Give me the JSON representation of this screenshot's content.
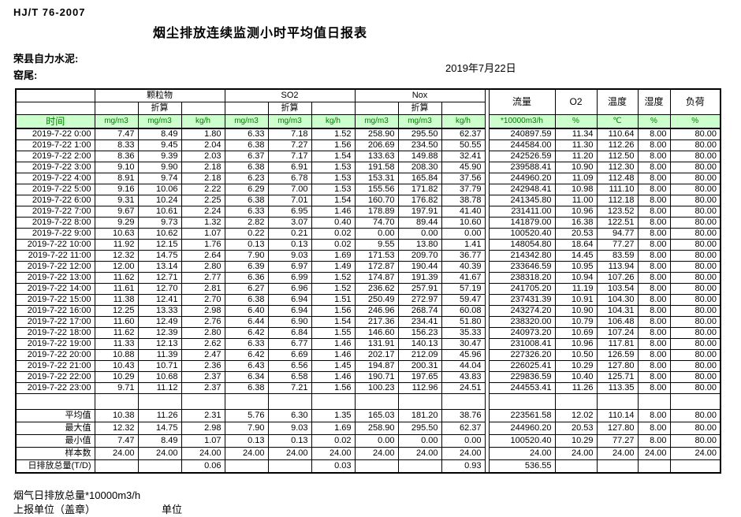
{
  "meta": {
    "standard": "HJ/T  76-2007",
    "title": "烟尘排放连续监测小时平均值日报表",
    "company": "荣县自力水泥:",
    "location": "窑尾:",
    "date": "2019年7月22日"
  },
  "table": {
    "groups": {
      "pm": "颗粒物",
      "so2": "SO2",
      "nox": "Nox",
      "converted": "折算"
    },
    "headers": {
      "time": "时间",
      "flow": "流量",
      "o2": "O2",
      "temp": "温度",
      "humidity": "湿度",
      "load": "负荷"
    },
    "units": {
      "mg": "mg/m3",
      "kg": "kg/h",
      "flow": "*10000m3/h",
      "percent": "%",
      "celsius": "℃"
    },
    "rows": [
      [
        "2019-7-22 0:00",
        "7.47",
        "8.49",
        "1.80",
        "6.33",
        "7.18",
        "1.52",
        "258.90",
        "295.50",
        "62.37",
        "240897.59",
        "11.34",
        "110.64",
        "8.00",
        "80.00"
      ],
      [
        "2019-7-22 1:00",
        "8.33",
        "9.45",
        "2.04",
        "6.38",
        "7.27",
        "1.56",
        "206.69",
        "234.50",
        "50.55",
        "244584.00",
        "11.30",
        "112.26",
        "8.00",
        "80.00"
      ],
      [
        "2019-7-22 2:00",
        "8.36",
        "9.39",
        "2.03",
        "6.37",
        "7.17",
        "1.54",
        "133.63",
        "149.88",
        "32.41",
        "242526.59",
        "11.20",
        "112.50",
        "8.00",
        "80.00"
      ],
      [
        "2019-7-22 3:00",
        "9.10",
        "9.90",
        "2.18",
        "6.38",
        "6.91",
        "1.53",
        "191.58",
        "208.30",
        "45.90",
        "239588.41",
        "10.90",
        "112.30",
        "8.00",
        "80.00"
      ],
      [
        "2019-7-22 4:00",
        "8.91",
        "9.74",
        "2.18",
        "6.23",
        "6.78",
        "1.53",
        "153.31",
        "165.84",
        "37.56",
        "244960.20",
        "11.09",
        "112.48",
        "8.00",
        "80.00"
      ],
      [
        "2019-7-22 5:00",
        "9.16",
        "10.06",
        "2.22",
        "6.29",
        "7.00",
        "1.53",
        "155.56",
        "171.82",
        "37.79",
        "242948.41",
        "10.98",
        "111.10",
        "8.00",
        "80.00"
      ],
      [
        "2019-7-22 6:00",
        "9.31",
        "10.24",
        "2.25",
        "6.38",
        "7.01",
        "1.54",
        "160.70",
        "176.82",
        "38.78",
        "241345.80",
        "11.00",
        "112.18",
        "8.00",
        "80.00"
      ],
      [
        "2019-7-22 7:00",
        "9.67",
        "10.61",
        "2.24",
        "6.33",
        "6.95",
        "1.46",
        "178.89",
        "197.91",
        "41.40",
        "231411.00",
        "10.96",
        "123.52",
        "8.00",
        "80.00"
      ],
      [
        "2019-7-22 8:00",
        "9.29",
        "9.73",
        "1.32",
        "2.82",
        "3.07",
        "0.40",
        "74.70",
        "89.44",
        "10.60",
        "141879.00",
        "16.38",
        "122.51",
        "8.00",
        "80.00"
      ],
      [
        "2019-7-22 9:00",
        "10.63",
        "10.62",
        "1.07",
        "0.22",
        "0.21",
        "0.02",
        "0.00",
        "0.00",
        "0.00",
        "100520.40",
        "20.53",
        "94.77",
        "8.00",
        "80.00"
      ],
      [
        "2019-7-22 10:00",
        "11.92",
        "12.15",
        "1.76",
        "0.13",
        "0.13",
        "0.02",
        "9.55",
        "13.80",
        "1.41",
        "148054.80",
        "18.64",
        "77.27",
        "8.00",
        "80.00"
      ],
      [
        "2019-7-22 11:00",
        "12.32",
        "14.75",
        "2.64",
        "7.90",
        "9.03",
        "1.69",
        "171.53",
        "209.70",
        "36.77",
        "214342.80",
        "14.45",
        "83.59",
        "8.00",
        "80.00"
      ],
      [
        "2019-7-22 12:00",
        "12.00",
        "13.14",
        "2.80",
        "6.39",
        "6.97",
        "1.49",
        "172.87",
        "190.44",
        "40.39",
        "233646.59",
        "10.95",
        "113.94",
        "8.00",
        "80.00"
      ],
      [
        "2019-7-22 13:00",
        "11.62",
        "12.71",
        "2.77",
        "6.36",
        "6.99",
        "1.52",
        "174.87",
        "191.39",
        "41.67",
        "238318.20",
        "10.94",
        "107.26",
        "8.00",
        "80.00"
      ],
      [
        "2019-7-22 14:00",
        "11.61",
        "12.70",
        "2.81",
        "6.27",
        "6.96",
        "1.52",
        "236.62",
        "257.91",
        "57.19",
        "241705.20",
        "11.19",
        "103.54",
        "8.00",
        "80.00"
      ],
      [
        "2019-7-22 15:00",
        "11.38",
        "12.41",
        "2.70",
        "6.38",
        "6.94",
        "1.51",
        "250.49",
        "272.97",
        "59.47",
        "237431.39",
        "10.91",
        "104.30",
        "8.00",
        "80.00"
      ],
      [
        "2019-7-22 16:00",
        "12.25",
        "13.33",
        "2.98",
        "6.40",
        "6.94",
        "1.56",
        "246.96",
        "268.74",
        "60.08",
        "243274.20",
        "10.90",
        "104.31",
        "8.00",
        "80.00"
      ],
      [
        "2019-7-22 17:00",
        "11.60",
        "12.49",
        "2.76",
        "6.44",
        "6.90",
        "1.54",
        "217.36",
        "234.41",
        "51.80",
        "238320.00",
        "10.79",
        "106.48",
        "8.00",
        "80.00"
      ],
      [
        "2019-7-22 18:00",
        "11.62",
        "12.39",
        "2.80",
        "6.42",
        "6.84",
        "1.55",
        "146.60",
        "156.23",
        "35.33",
        "240973.20",
        "10.69",
        "107.24",
        "8.00",
        "80.00"
      ],
      [
        "2019-7-22 19:00",
        "11.33",
        "12.13",
        "2.62",
        "6.33",
        "6.77",
        "1.46",
        "131.91",
        "140.13",
        "30.47",
        "231008.41",
        "10.96",
        "117.81",
        "8.00",
        "80.00"
      ],
      [
        "2019-7-22 20:00",
        "10.88",
        "11.39",
        "2.47",
        "6.42",
        "6.69",
        "1.46",
        "202.17",
        "212.09",
        "45.96",
        "227326.20",
        "10.50",
        "126.59",
        "8.00",
        "80.00"
      ],
      [
        "2019-7-22 21:00",
        "10.43",
        "10.71",
        "2.36",
        "6.43",
        "6.56",
        "1.45",
        "194.87",
        "200.31",
        "44.04",
        "226025.41",
        "10.29",
        "127.80",
        "8.00",
        "80.00"
      ],
      [
        "2019-7-22 22:00",
        "10.29",
        "10.68",
        "2.37",
        "6.34",
        "6.58",
        "1.46",
        "190.71",
        "197.65",
        "43.83",
        "229836.59",
        "10.40",
        "125.71",
        "8.00",
        "80.00"
      ],
      [
        "2019-7-22 23:00",
        "9.71",
        "11.12",
        "2.37",
        "6.38",
        "7.21",
        "1.56",
        "100.23",
        "112.96",
        "24.51",
        "244553.41",
        "11.26",
        "113.35",
        "8.00",
        "80.00"
      ]
    ],
    "summary": [
      {
        "label": "平均值",
        "values": [
          "10.38",
          "11.26",
          "2.31",
          "5.76",
          "6.30",
          "1.35",
          "165.03",
          "181.20",
          "38.76",
          "223561.58",
          "12.02",
          "110.14",
          "8.00",
          "80.00"
        ]
      },
      {
        "label": "最大值",
        "values": [
          "12.32",
          "14.75",
          "2.98",
          "7.90",
          "9.03",
          "1.69",
          "258.90",
          "295.50",
          "62.37",
          "244960.20",
          "20.53",
          "127.80",
          "8.00",
          "80.00"
        ]
      },
      {
        "label": "最小值",
        "values": [
          "7.47",
          "8.49",
          "1.07",
          "0.13",
          "0.13",
          "0.02",
          "0.00",
          "0.00",
          "0.00",
          "100520.40",
          "10.29",
          "77.27",
          "8.00",
          "80.00"
        ]
      },
      {
        "label": "样本数",
        "values": [
          "24.00",
          "24.00",
          "24.00",
          "24.00",
          "24.00",
          "24.00",
          "24.00",
          "24.00",
          "24.00",
          "24.00",
          "24.00",
          "24.00",
          "24.00",
          "24.00"
        ]
      },
      {
        "label": "日排放总量(T/D)",
        "values": [
          "",
          "",
          "0.06",
          "",
          "",
          "0.03",
          "",
          "",
          "0.93",
          "536.55",
          "",
          "",
          "",
          ""
        ]
      }
    ]
  },
  "footer": {
    "note": "烟气日排放总量*10000m3/h",
    "report_unit": "上报单位（盖章）",
    "unit": "单位"
  },
  "colors": {
    "header_green_bg": "#ccffcc",
    "header_green_text": "#008000",
    "border": "#000000"
  }
}
